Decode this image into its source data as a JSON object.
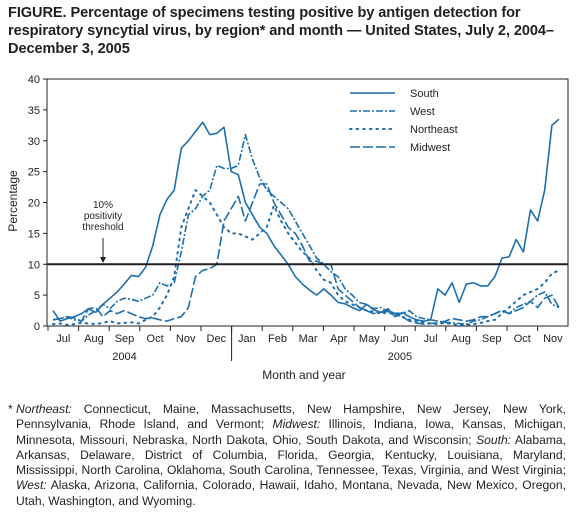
{
  "title": "FIGURE. Percentage of specimens testing positive by antigen detection for respiratory syncytial virus, by region* and month — United States, July 2, 2004–December 3, 2005",
  "chart_data": {
    "type": "line",
    "ylabel": "Percentage",
    "xlabel": "Month and year",
    "ylim": [
      0,
      40
    ],
    "yticks": [
      0,
      5,
      10,
      15,
      20,
      25,
      30,
      35,
      40
    ],
    "months": [
      "Jul",
      "Aug",
      "Sep",
      "Oct",
      "Nov",
      "Dec",
      "Jan",
      "Feb",
      "Mar",
      "Apr",
      "May",
      "Jun",
      "Jul",
      "Aug",
      "Sep",
      "Oct",
      "Nov"
    ],
    "years": [
      "2004",
      "2005"
    ],
    "threshold": {
      "value": 10,
      "label_line1": "10%",
      "label_line2": "positivity",
      "label_line3": "threshold"
    },
    "legend_position": "top-right",
    "series": [
      {
        "name": "South",
        "dash": "solid",
        "values": [
          2.5,
          0.8,
          1.2,
          1.5,
          2.0,
          2.8,
          2.2,
          3.5,
          4.5,
          5.5,
          6.8,
          8.2,
          8.0,
          9.5,
          13,
          18,
          20.5,
          22,
          28.8,
          30,
          31.5,
          33,
          31,
          31.2,
          32.2,
          25,
          24.5,
          20,
          18,
          16,
          15,
          13,
          11.5,
          10,
          8,
          6.8,
          5.8,
          5,
          6,
          5,
          3.8,
          3.6,
          3,
          2.5,
          3.5,
          2.6,
          2.2,
          2.8,
          1.5,
          2.2,
          1.5,
          1,
          0.8,
          1,
          6,
          5,
          7,
          3.8,
          6.8,
          7,
          6.5,
          6.5,
          8,
          11,
          11.2,
          14,
          12,
          18.8,
          17,
          22,
          32.5,
          33.5
        ]
      },
      {
        "name": "West",
        "dash": "dashdot",
        "values": [
          1,
          1.2,
          1.5,
          1,
          0.8,
          1.8,
          2.5,
          3.5,
          2.8,
          4,
          4.5,
          4.3,
          4,
          4.5,
          5,
          7,
          6.5,
          7,
          12,
          18,
          19,
          21,
          22,
          26,
          25.5,
          25.5,
          26,
          31,
          27,
          24,
          22,
          21,
          20,
          19,
          17,
          15,
          13,
          11,
          10,
          8.8,
          8,
          6,
          5,
          3.8,
          3.5,
          2.8,
          3,
          2.3,
          2.1,
          2,
          2.5,
          1.5,
          1.2,
          1,
          0.8,
          0.6,
          0.5,
          0.4,
          0.3,
          0.8,
          1,
          1.5,
          2,
          2.5,
          2,
          3,
          3.5,
          4,
          5,
          5.5,
          3.5,
          3
        ]
      },
      {
        "name": "Northeast",
        "dash": "dotted",
        "values": [
          0.3,
          0.4,
          0.2,
          0.3,
          0.5,
          0.4,
          0.3,
          0.5,
          0.8,
          0.4,
          0.5,
          0.6,
          0.4,
          1,
          1.5,
          3,
          5,
          8,
          16,
          19,
          22,
          21,
          20,
          18,
          16,
          15,
          15,
          14.5,
          14,
          15,
          16,
          19.5,
          17,
          15,
          13.5,
          12,
          11,
          9,
          7.5,
          7,
          5,
          4,
          3.5,
          3,
          2.5,
          2.3,
          2,
          2.2,
          1.8,
          1.5,
          1,
          0.8,
          0.6,
          0.4,
          0.3,
          0.5,
          0.3,
          0.2,
          0.2,
          0.3,
          0.5,
          0.8,
          1,
          2,
          3,
          4,
          5,
          5.5,
          6,
          7,
          8.5,
          9
        ]
      },
      {
        "name": "Midwest",
        "dash": "longdash",
        "values": [
          1,
          1.2,
          1.5,
          1.3,
          0.8,
          2.8,
          3,
          1.5,
          2.5,
          2,
          2.5,
          2,
          1.5,
          1.2,
          1.3,
          1,
          0.8,
          1.2,
          1.5,
          3,
          8,
          9,
          9.3,
          10,
          17,
          19,
          21,
          17,
          20,
          23,
          23,
          20,
          18,
          16,
          15,
          13,
          10.5,
          10.5,
          10,
          10,
          6,
          5,
          4,
          3,
          2.5,
          2,
          2.2,
          2.5,
          2,
          1.5,
          0.8,
          0.5,
          0.3,
          0.4,
          0.5,
          0.8,
          1.2,
          1,
          0.8,
          1,
          1.5,
          1.5,
          2,
          2.5,
          2,
          2.5,
          3,
          4,
          3,
          4.5,
          5,
          3
        ]
      }
    ]
  },
  "footnote": {
    "marker": "*",
    "parts": [
      {
        "label": "Northeast:",
        "text": " Connecticut, Maine, Massachusetts, New Hampshire, New Jersey, New York, Pennsylvania, Rhode Island, and Vermont; "
      },
      {
        "label": "Midwest:",
        "text": " Illinois, Indiana, Iowa, Kansas, Michigan, Minnesota, Missouri, Nebraska, North Dakota, Ohio, South Dakota, and Wisconsin; "
      },
      {
        "label": "South:",
        "text": " Alabama, Arkansas, Delaware, District of Columbia, Florida, Georgia, Kentucky, Louisiana, Maryland, Mississippi, North Carolina, Oklahoma, South Carolina, Tennessee, Texas, Virginia, and West Virginia; "
      },
      {
        "label": "West:",
        "text": " Alaska, Arizona, California, Colorado, Hawaii, Idaho, Montana, Nevada, New Mexico, Oregon, Utah, Washington, and Wyoming."
      }
    ]
  }
}
